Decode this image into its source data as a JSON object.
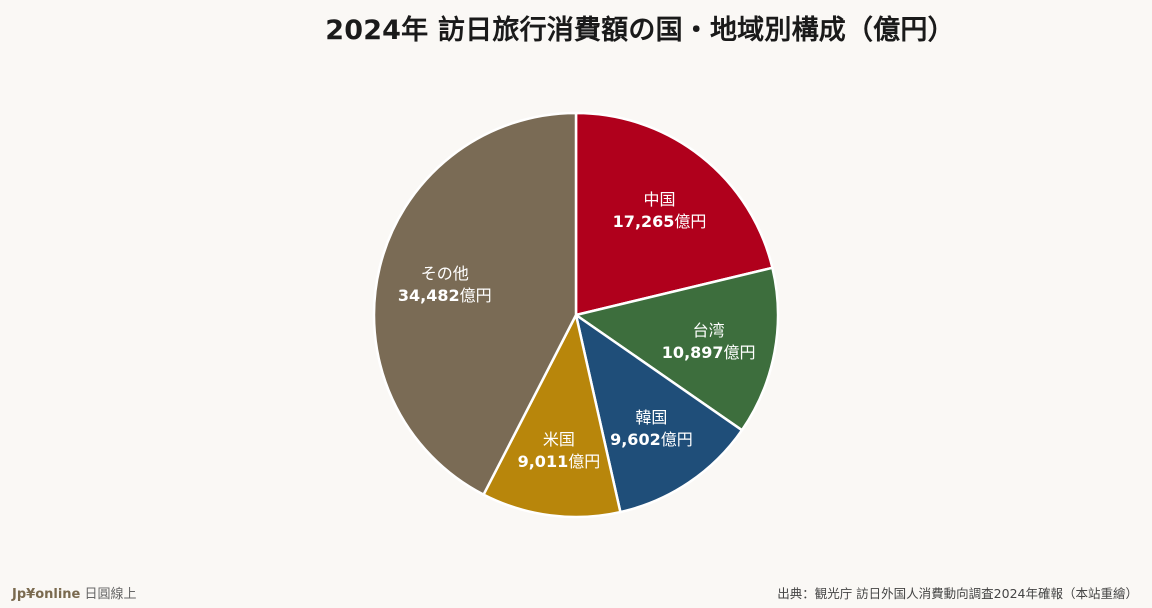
{
  "chart_data": {
    "type": "pie",
    "title": "2024年 訪日旅行消費額の国・地域別構成（億円）",
    "unit": "億円",
    "categories": [
      "中国",
      "台湾",
      "韓国",
      "米国",
      "その他"
    ],
    "values": [
      17265,
      10897,
      9602,
      9011,
      34482
    ],
    "value_labels": [
      "17,265",
      "10,897",
      "9,602",
      "9,011",
      "34,482"
    ],
    "colors": [
      "#b0001c",
      "#3d6e3d",
      "#1f4e79",
      "#b8860b",
      "#7a6b55"
    ],
    "start_angle": "top",
    "direction": "clockwise"
  },
  "footer": {
    "brand": "Jp¥online",
    "brand_sub": "日圓線上",
    "source": "出典：観光庁 訪日外国人消費動向調査2024年確報（本站重繪）"
  }
}
